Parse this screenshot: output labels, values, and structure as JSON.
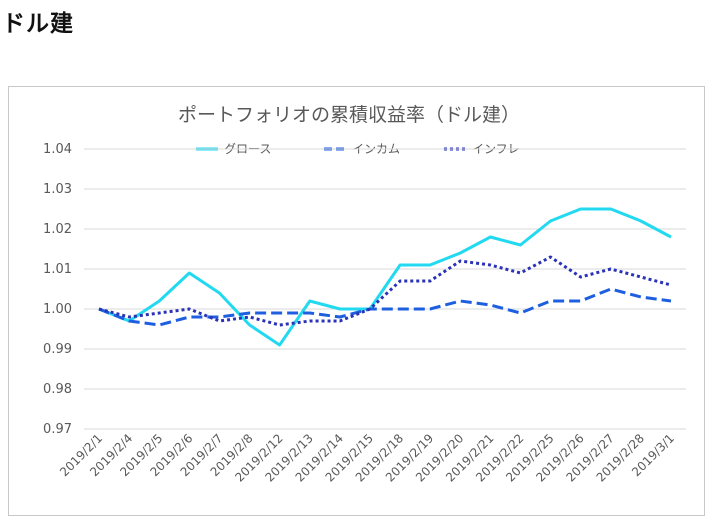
{
  "page": {
    "heading": "ドル建"
  },
  "chart_data": {
    "type": "line",
    "title": "ポートフォリオの累積収益率（ドル建）",
    "xlabel": "",
    "ylabel": "",
    "ylim": [
      0.97,
      1.04
    ],
    "yticks": [
      "1.04",
      "1.03",
      "1.02",
      "1.01",
      "1.00",
      "0.99",
      "0.98",
      "0.97"
    ],
    "grid": "horizontal",
    "legend": "top",
    "categories": [
      "2019/2/1",
      "2019/2/4",
      "2019/2/5",
      "2019/2/6",
      "2019/2/7",
      "2019/2/8",
      "2019/2/12",
      "2019/2/13",
      "2019/2/14",
      "2019/2/15",
      "2019/2/18",
      "2019/2/19",
      "2019/2/20",
      "2019/2/21",
      "2019/2/22",
      "2019/2/25",
      "2019/2/26",
      "2019/2/27",
      "2019/2/28",
      "2019/3/1"
    ],
    "series": [
      {
        "name": "グロース",
        "color": "#22d9f0",
        "style": "solid",
        "values": [
          1.0,
          0.997,
          1.002,
          1.009,
          1.004,
          0.996,
          0.991,
          1.002,
          1.0,
          1.0,
          1.011,
          1.011,
          1.014,
          1.018,
          1.016,
          1.022,
          1.025,
          1.025,
          1.022,
          1.018
        ]
      },
      {
        "name": "インカム",
        "color": "#1e5fe0",
        "style": "dash",
        "values": [
          1.0,
          0.997,
          0.996,
          0.998,
          0.998,
          0.999,
          0.999,
          0.999,
          0.998,
          1.0,
          1.0,
          1.0,
          1.002,
          1.001,
          0.999,
          1.002,
          1.002,
          1.005,
          1.003,
          1.002
        ]
      },
      {
        "name": "インフレ",
        "color": "#2a32b8",
        "style": "dot",
        "values": [
          1.0,
          0.998,
          0.999,
          1.0,
          0.997,
          0.998,
          0.996,
          0.997,
          0.997,
          1.0,
          1.007,
          1.007,
          1.012,
          1.011,
          1.009,
          1.013,
          1.008,
          1.01,
          1.008,
          1.006
        ]
      }
    ]
  }
}
